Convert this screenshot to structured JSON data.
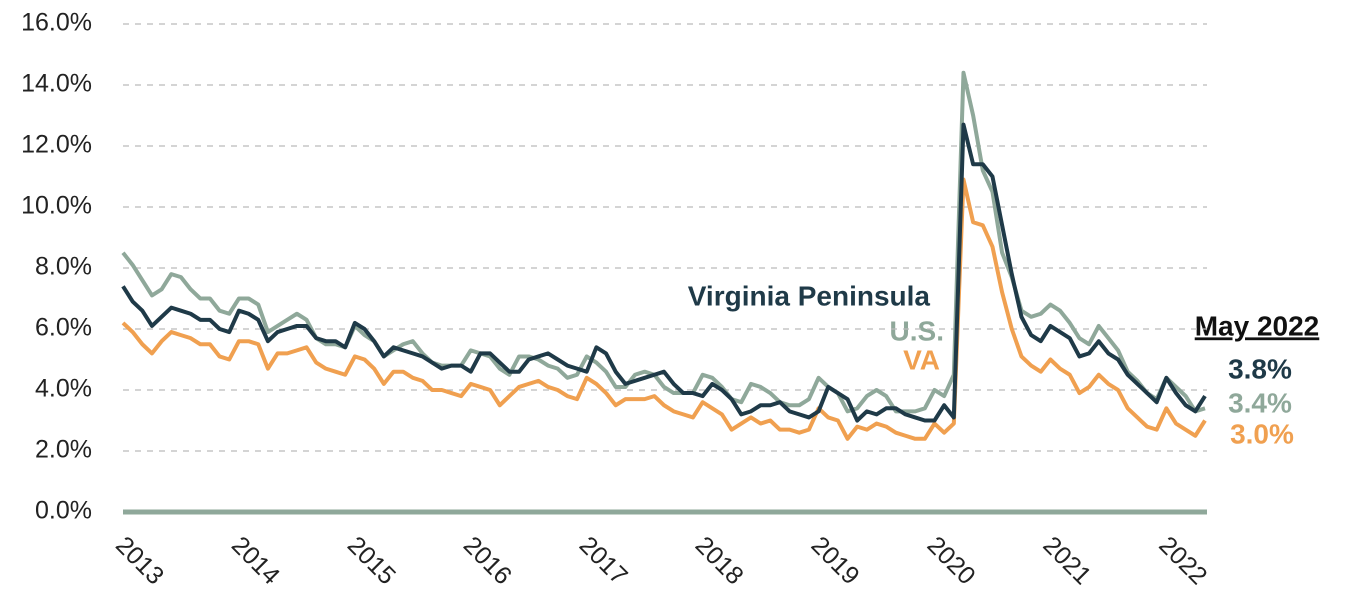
{
  "chart_data": {
    "type": "line",
    "categories": [
      "2013",
      null,
      null,
      null,
      null,
      null,
      null,
      null,
      null,
      null,
      null,
      null,
      "2014",
      null,
      null,
      null,
      null,
      null,
      null,
      null,
      null,
      null,
      null,
      null,
      "2015",
      null,
      null,
      null,
      null,
      null,
      null,
      null,
      null,
      null,
      null,
      null,
      "2016",
      null,
      null,
      null,
      null,
      null,
      null,
      null,
      null,
      null,
      null,
      null,
      "2017",
      null,
      null,
      null,
      null,
      null,
      null,
      null,
      null,
      null,
      null,
      null,
      "2018",
      null,
      null,
      null,
      null,
      null,
      null,
      null,
      null,
      null,
      null,
      null,
      "2019",
      null,
      null,
      null,
      null,
      null,
      null,
      null,
      null,
      null,
      null,
      null,
      "2020",
      null,
      null,
      null,
      null,
      null,
      null,
      null,
      null,
      null,
      null,
      null,
      "2021",
      null,
      null,
      null,
      null,
      null,
      null,
      null,
      null,
      null,
      null,
      null,
      "2022",
      null,
      null,
      null,
      null
    ],
    "series": [
      {
        "name": "Virginia Peninsula",
        "color": "#1f3a48",
        "last_label": "3.8%",
        "values": [
          7.4,
          6.9,
          6.6,
          6.1,
          6.4,
          6.7,
          6.6,
          6.5,
          6.3,
          6.3,
          6.0,
          5.9,
          6.6,
          6.5,
          6.3,
          5.6,
          5.9,
          6.0,
          6.1,
          6.1,
          5.7,
          5.6,
          5.6,
          5.4,
          6.2,
          6.0,
          5.6,
          5.1,
          5.4,
          5.3,
          5.2,
          5.1,
          4.9,
          4.7,
          4.8,
          4.8,
          4.6,
          5.2,
          5.2,
          4.9,
          4.6,
          4.6,
          5.0,
          5.1,
          5.2,
          5.0,
          4.8,
          4.7,
          4.6,
          5.4,
          5.2,
          4.6,
          4.2,
          4.3,
          4.4,
          4.5,
          4.6,
          4.2,
          3.9,
          3.9,
          3.8,
          4.2,
          4.0,
          3.7,
          3.2,
          3.3,
          3.5,
          3.5,
          3.6,
          3.3,
          3.2,
          3.1,
          3.3,
          4.1,
          3.9,
          3.7,
          3.0,
          3.3,
          3.2,
          3.4,
          3.4,
          3.2,
          3.1,
          3.0,
          3.0,
          3.5,
          3.1,
          12.7,
          11.4,
          11.4,
          11.0,
          9.4,
          7.8,
          6.4,
          5.8,
          5.6,
          6.1,
          5.9,
          5.7,
          5.1,
          5.2,
          5.6,
          5.2,
          5.0,
          4.5,
          4.2,
          3.9,
          3.6,
          4.4,
          3.9,
          3.5,
          3.3,
          3.8
        ]
      },
      {
        "name": "U.S.",
        "color": "#8fa89a",
        "last_label": "3.4%",
        "values": [
          8.5,
          8.1,
          7.6,
          7.1,
          7.3,
          7.8,
          7.7,
          7.3,
          7.0,
          7.0,
          6.6,
          6.5,
          7.0,
          7.0,
          6.8,
          5.9,
          6.1,
          6.3,
          6.5,
          6.3,
          5.7,
          5.5,
          5.5,
          5.4,
          6.1,
          5.8,
          5.6,
          5.1,
          5.3,
          5.5,
          5.6,
          5.2,
          4.9,
          4.8,
          4.8,
          4.8,
          5.3,
          5.2,
          5.1,
          4.7,
          4.5,
          5.1,
          5.1,
          5.0,
          4.8,
          4.7,
          4.4,
          4.5,
          5.1,
          4.9,
          4.6,
          4.1,
          4.1,
          4.5,
          4.6,
          4.5,
          4.1,
          3.9,
          3.9,
          3.9,
          4.5,
          4.4,
          4.1,
          3.7,
          3.6,
          4.2,
          4.1,
          3.9,
          3.6,
          3.5,
          3.5,
          3.7,
          4.4,
          4.1,
          3.9,
          3.3,
          3.4,
          3.8,
          4.0,
          3.8,
          3.3,
          3.3,
          3.3,
          3.4,
          4.0,
          3.8,
          4.5,
          14.4,
          13.0,
          11.2,
          10.5,
          8.5,
          7.7,
          6.6,
          6.4,
          6.5,
          6.8,
          6.6,
          6.2,
          5.7,
          5.5,
          6.1,
          5.7,
          5.3,
          4.6,
          4.3,
          3.9,
          3.7,
          4.4,
          4.1,
          3.8,
          3.3,
          3.4
        ]
      },
      {
        "name": "VA",
        "color": "#f0a050",
        "last_label": "3.0%",
        "values": [
          6.2,
          5.9,
          5.5,
          5.2,
          5.6,
          5.9,
          5.8,
          5.7,
          5.5,
          5.5,
          5.1,
          5.0,
          5.6,
          5.6,
          5.5,
          4.7,
          5.2,
          5.2,
          5.3,
          5.4,
          4.9,
          4.7,
          4.6,
          4.5,
          5.1,
          5.0,
          4.7,
          4.2,
          4.6,
          4.6,
          4.4,
          4.3,
          4.0,
          4.0,
          3.9,
          3.8,
          4.2,
          4.1,
          4.0,
          3.5,
          3.8,
          4.1,
          4.2,
          4.3,
          4.1,
          4.0,
          3.8,
          3.7,
          4.4,
          4.2,
          3.9,
          3.5,
          3.7,
          3.7,
          3.7,
          3.8,
          3.5,
          3.3,
          3.2,
          3.1,
          3.6,
          3.4,
          3.2,
          2.7,
          2.9,
          3.1,
          2.9,
          3.0,
          2.7,
          2.7,
          2.6,
          2.7,
          3.4,
          3.1,
          3.0,
          2.4,
          2.8,
          2.7,
          2.9,
          2.8,
          2.6,
          2.5,
          2.4,
          2.4,
          2.9,
          2.6,
          2.9,
          10.9,
          9.5,
          9.4,
          8.7,
          7.2,
          6.0,
          5.1,
          4.8,
          4.6,
          5.0,
          4.7,
          4.5,
          3.9,
          4.1,
          4.5,
          4.2,
          4.0,
          3.4,
          3.1,
          2.8,
          2.7,
          3.4,
          2.9,
          2.7,
          2.5,
          3.0
        ]
      }
    ],
    "end_date": "May 2022",
    "ylim": [
      0,
      16
    ],
    "yticks": [
      {
        "value": 0,
        "label": "0.0%"
      },
      {
        "value": 2,
        "label": "2.0%"
      },
      {
        "value": 4,
        "label": "4.0%"
      },
      {
        "value": 6,
        "label": "6.0%"
      },
      {
        "value": 8,
        "label": "8.0%"
      },
      {
        "value": 10,
        "label": "10.0%"
      },
      {
        "value": 12,
        "label": "12.0%"
      },
      {
        "value": 14,
        "label": "14.0%"
      },
      {
        "value": 16,
        "label": "16.0%"
      }
    ],
    "grid": true
  }
}
